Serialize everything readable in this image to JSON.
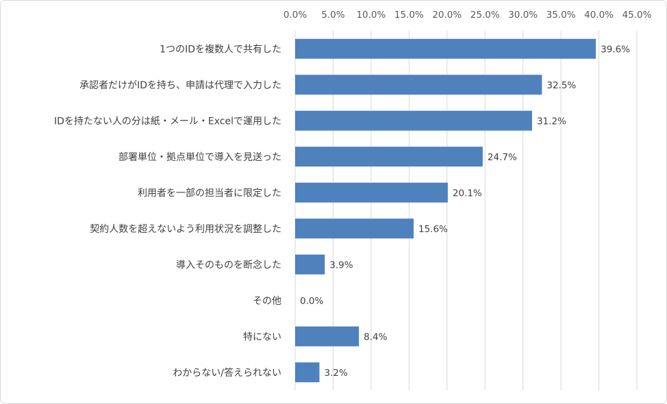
{
  "chart_data": {
    "type": "bar",
    "orientation": "horizontal",
    "categories": [
      "1つのIDを複数人で共有した",
      "承認者だけがIDを持ち、申請は代理で入力した",
      "IDを持たない人の分は紙・メール・Excelで運用した",
      "部署単位・拠点単位で導入を見送った",
      "利用者を一部の担当者に限定した",
      "契約人数を超えないよう利用状況を調整した",
      "導入そのものを断念した",
      "その他",
      "特にない",
      "わからない/答えられない"
    ],
    "values": [
      39.6,
      32.5,
      31.2,
      24.7,
      20.1,
      15.6,
      3.9,
      0.0,
      8.4,
      3.2
    ],
    "data_labels": [
      "39.6%",
      "32.5%",
      "31.2%",
      "24.7%",
      "20.1%",
      "15.6%",
      "3.9%",
      "0.0%",
      "8.4%",
      "3.2%"
    ],
    "xlim": [
      0,
      45
    ],
    "x_ticks": [
      0,
      5,
      10,
      15,
      20,
      25,
      30,
      35,
      40,
      45
    ],
    "x_tick_labels": [
      "0.0%",
      "5.0%",
      "10.0%",
      "15.0%",
      "20.0%",
      "25.0%",
      "30.0%",
      "35.0%",
      "40.0%",
      "45.0%"
    ],
    "x_axis_position": "top",
    "grid": true,
    "legend": "none",
    "bar_color": "#4f81bd",
    "grid_color": "#d9d9d9"
  }
}
